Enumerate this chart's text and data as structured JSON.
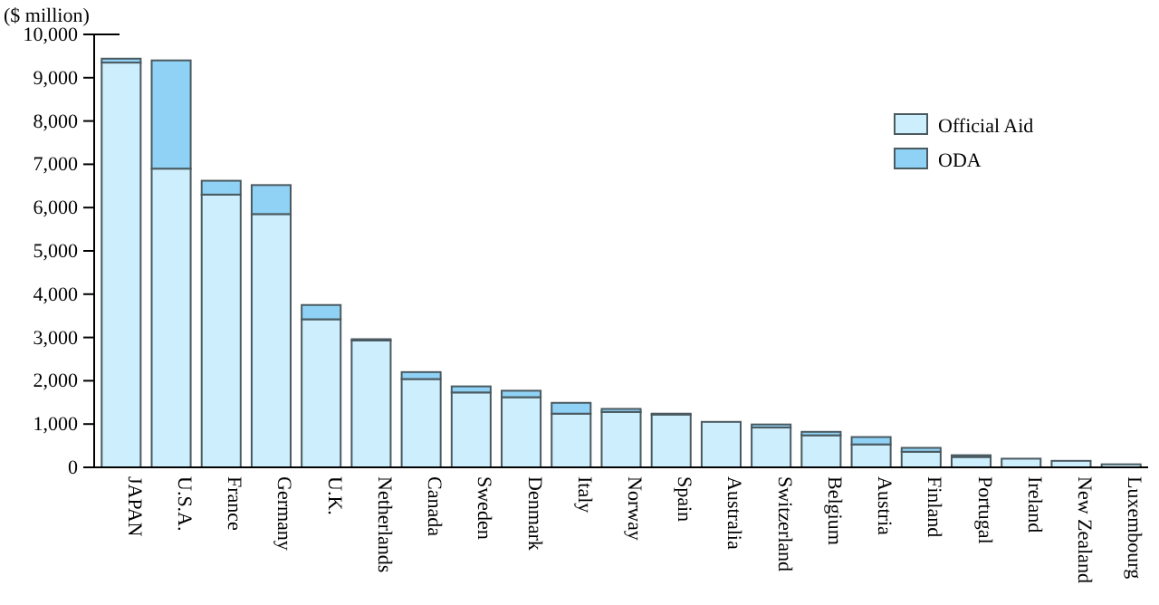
{
  "chart_data": {
    "type": "bar",
    "stacked": true,
    "ylabel": "($ million)",
    "categories": [
      "JAPAN",
      "U.S.A.",
      "France",
      "Germany",
      "U.K.",
      "Netherlands",
      "Canada",
      "Sweden",
      "Denmark",
      "Italy",
      "Norway",
      "Spain",
      "Australia",
      "Switzerland",
      "Belgium",
      "Austria",
      "Finland",
      "Portugal",
      "Ireland",
      "New Zealand",
      "Luxembourg"
    ],
    "series": [
      {
        "name": "Official Aid",
        "color": "#cdeefc",
        "values": [
          9350,
          6900,
          6300,
          5850,
          3420,
          2930,
          2040,
          1730,
          1620,
          1240,
          1280,
          1220,
          1050,
          920,
          740,
          530,
          360,
          240,
          200,
          150,
          70
        ]
      },
      {
        "name": "ODA",
        "color": "#90d2f5",
        "values": [
          90,
          2500,
          320,
          670,
          330,
          30,
          160,
          140,
          150,
          250,
          70,
          20,
          null,
          70,
          80,
          170,
          90,
          40,
          null,
          null,
          null
        ]
      }
    ],
    "ylim": [
      0,
      10000
    ],
    "yticks": [
      {
        "value": 0,
        "label": "0"
      },
      {
        "value": 1000,
        "label": "1,000"
      },
      {
        "value": 2000,
        "label": "2,000"
      },
      {
        "value": 3000,
        "label": "3,000"
      },
      {
        "value": 4000,
        "label": "4,000"
      },
      {
        "value": 5000,
        "label": "5,000"
      },
      {
        "value": 6000,
        "label": "6,000"
      },
      {
        "value": 7000,
        "label": "7,000"
      },
      {
        "value": 8000,
        "label": "8,000"
      },
      {
        "value": 9000,
        "label": "9,000"
      },
      {
        "value": 10000,
        "label": "10,000"
      }
    ],
    "legend": "top right"
  }
}
